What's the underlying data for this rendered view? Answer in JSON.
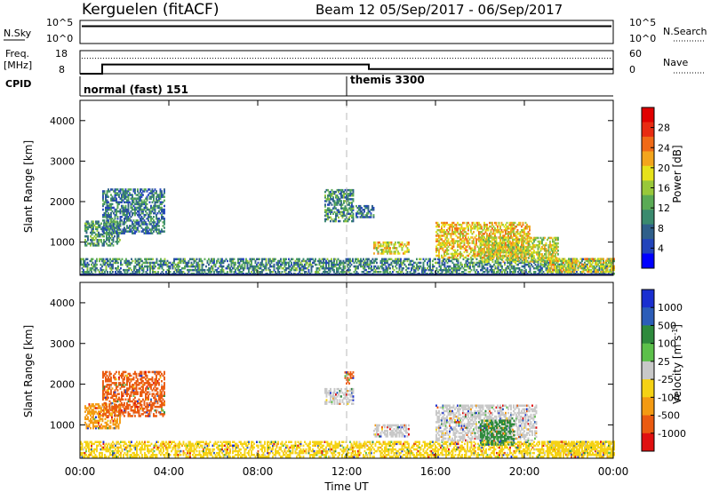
{
  "header": {
    "station": "Kerguelen (fitACF)",
    "beam_and_dates": "Beam 12  05/Sep/2017 - 06/Sep/2017"
  },
  "summary": {
    "nsky_label": "N.Sky",
    "nsky_ticks": [
      "10^5",
      "10^0"
    ],
    "nsearch_label": "N.Search",
    "nsearch_ticks": [
      "10^5",
      "10^0"
    ],
    "freq_label_1": "Freq.",
    "freq_label_2": "[MHz]",
    "freq_ticks": [
      "18",
      "8"
    ],
    "nave_label": "Nave",
    "nave_ticks": [
      "60",
      "0"
    ],
    "cpid_label": "CPID",
    "cpid_segments": [
      {
        "label": "normal (fast) 151",
        "start_hr": 0,
        "end_hr": 12
      },
      {
        "label": "themis 3300",
        "start_hr": 12,
        "end_hr": 24
      }
    ],
    "freq_series_hr": [
      0,
      1,
      1,
      13,
      13,
      24
    ],
    "freq_series_mhz": [
      8,
      8,
      12,
      12,
      10,
      10
    ],
    "nave_series_hr": [
      0,
      24
    ],
    "nave_series": [
      40,
      40
    ],
    "nsky_level": 0.75
  },
  "chart_data": [
    {
      "type": "heatmap",
      "name": "Power",
      "xlabel": "Time UT",
      "ylabel": "Slant Range [km]",
      "xlim": [
        0,
        24
      ],
      "ylim": [
        180,
        4500
      ],
      "x_ticks": [
        "00:00",
        "04:00",
        "08:00",
        "12:00",
        "16:00",
        "20:00",
        "00:00"
      ],
      "y_ticks": [
        1000,
        2000,
        3000,
        4000
      ],
      "colorbar_label": "Power [dB]",
      "colorbar_ticks": [
        "4",
        "8",
        "12",
        "16",
        "20",
        "24",
        "28"
      ],
      "colorbar_colors": [
        "#0000ff",
        "#2244bb",
        "#2f5f8a",
        "#3a8a6e",
        "#5aaa55",
        "#98c83a",
        "#e6e21a",
        "#f3a51c",
        "#f06a17",
        "#e82b12",
        "#e00000"
      ],
      "ground_scatter_range_km": 200,
      "regions": [
        {
          "t0": 0.2,
          "t1": 1.8,
          "r0": 900,
          "r1": 1500,
          "level": 0.35
        },
        {
          "t0": 1.0,
          "t1": 3.8,
          "r0": 1200,
          "r1": 2300,
          "level": 0.25
        },
        {
          "t0": 0.0,
          "t1": 24.0,
          "r0": 200,
          "r1": 600,
          "level": 0.3
        },
        {
          "t0": 11.0,
          "t1": 12.3,
          "r0": 1500,
          "r1": 2300,
          "level": 0.3
        },
        {
          "t0": 12.4,
          "t1": 13.2,
          "r0": 1600,
          "r1": 1900,
          "level": 0.25
        },
        {
          "t0": 13.2,
          "t1": 14.8,
          "r0": 700,
          "r1": 1000,
          "level": 0.6
        },
        {
          "t0": 16.0,
          "t1": 20.2,
          "r0": 600,
          "r1": 1500,
          "level": 0.65
        },
        {
          "t0": 18.0,
          "t1": 21.5,
          "r0": 500,
          "r1": 1100,
          "level": 0.55
        },
        {
          "t0": 21.0,
          "t1": 24.0,
          "r0": 250,
          "r1": 600,
          "level": 0.6
        }
      ]
    },
    {
      "type": "heatmap",
      "name": "Velocity",
      "xlabel": "Time UT",
      "ylabel": "Slant Range [km]",
      "xlim": [
        0,
        24
      ],
      "ylim": [
        180,
        4500
      ],
      "x_ticks": [
        "00:00",
        "04:00",
        "08:00",
        "12:00",
        "16:00",
        "20:00",
        "00:00"
      ],
      "y_ticks": [
        1000,
        2000,
        3000,
        4000
      ],
      "colorbar_label": "Velocity [m s^-1]",
      "colorbar_ticks": [
        "1000",
        "500",
        "100",
        "25",
        "-25",
        "-100",
        "-500",
        "-1000"
      ],
      "colorbar_colors": [
        "#1a2fd0",
        "#2c5db8",
        "#2e8a3c",
        "#5cc04a",
        "#c8c8c8",
        "#f5d214",
        "#f39a12",
        "#ea5a10",
        "#e01010"
      ],
      "regions": [
        {
          "t0": 0.2,
          "t1": 1.8,
          "r0": 900,
          "r1": 1500,
          "color": "#f39a12"
        },
        {
          "t0": 1.0,
          "t1": 3.8,
          "r0": 1200,
          "r1": 2300,
          "color": "#ea5a10"
        },
        {
          "t0": 0.0,
          "t1": 24.0,
          "r0": 200,
          "r1": 600,
          "color": "#f5d214"
        },
        {
          "t0": 11.0,
          "t1": 12.3,
          "r0": 1500,
          "r1": 1900,
          "color": "#c8c8c8"
        },
        {
          "t0": 11.9,
          "t1": 12.3,
          "r0": 2000,
          "r1": 2300,
          "color": "#ea5a10"
        },
        {
          "t0": 13.2,
          "t1": 14.8,
          "r0": 700,
          "r1": 1000,
          "color": "#c8c8c8"
        },
        {
          "t0": 16.0,
          "t1": 20.5,
          "r0": 600,
          "r1": 1500,
          "color": "#c8c8c8"
        },
        {
          "t0": 18.0,
          "t1": 19.5,
          "r0": 500,
          "r1": 1100,
          "color": "#2e8a3c"
        },
        {
          "t0": 21.0,
          "t1": 24.0,
          "r0": 250,
          "r1": 600,
          "color": "#f5d214"
        }
      ]
    }
  ]
}
